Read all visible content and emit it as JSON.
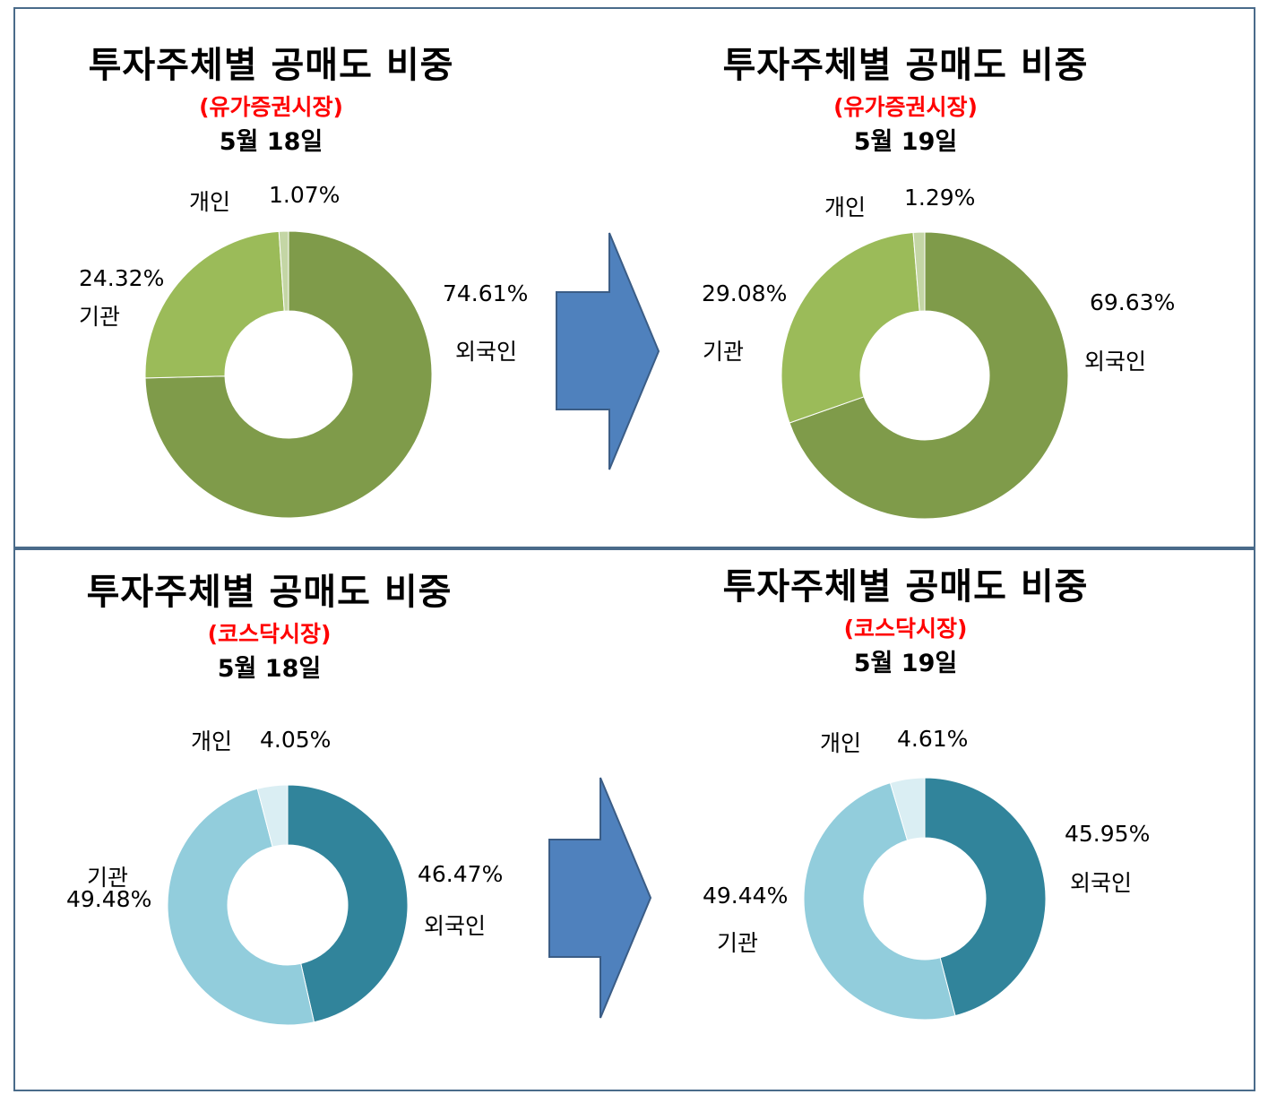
{
  "charts": [
    {
      "title": "투자주체별 공매도 비중",
      "market": "(유가증권시장)",
      "date": "5월 18일"
    },
    {
      "title": "투자주체별 공매도 비중",
      "market": "(유가증권시장)",
      "date": "5월 19일"
    },
    {
      "title": "투자주체별 공매도 비중",
      "market": "(코스닥시장)",
      "date": "5월 18일"
    },
    {
      "title": "투자주체별 공매도 비중",
      "market": "(코스닥시장)",
      "date": "5월 19일"
    }
  ],
  "chart_data": [
    {
      "type": "pie",
      "title": "투자주체별 공매도 비중",
      "subtitle": "(유가증권시장) 5월 18일",
      "categories": [
        "외국인",
        "기관",
        "개인"
      ],
      "values": [
        74.61,
        24.32,
        1.07
      ],
      "value_labels": [
        "74.61%",
        "24.32%",
        "1.07%"
      ],
      "colors": [
        "#7f9b4a",
        "#9bbb59",
        "#c4d6a5"
      ]
    },
    {
      "type": "pie",
      "title": "투자주체별 공매도 비중",
      "subtitle": "(유가증권시장) 5월 19일",
      "categories": [
        "외국인",
        "기관",
        "개인"
      ],
      "values": [
        69.63,
        29.08,
        1.29
      ],
      "value_labels": [
        "69.63%",
        "29.08%",
        "1.29%"
      ],
      "colors": [
        "#7f9b4a",
        "#9bbb59",
        "#c4d6a5"
      ]
    },
    {
      "type": "pie",
      "title": "투자주체별 공매도 비중",
      "subtitle": "(코스닥시장) 5월 18일",
      "categories": [
        "외국인",
        "기관",
        "개인"
      ],
      "values": [
        46.47,
        49.48,
        4.05
      ],
      "value_labels": [
        "46.47%",
        "49.48%",
        "4.05%"
      ],
      "colors": [
        "#31849b",
        "#92cddc",
        "#daeef3"
      ]
    },
    {
      "type": "pie",
      "title": "투자주체별 공매도 비중",
      "subtitle": "(코스닥시장) 5월 19일",
      "categories": [
        "외국인",
        "기관",
        "개인"
      ],
      "values": [
        45.95,
        49.44,
        4.61
      ],
      "value_labels": [
        "45.95%",
        "49.44%",
        "4.61%"
      ],
      "colors": [
        "#31849b",
        "#92cddc",
        "#daeef3"
      ]
    }
  ],
  "arrow_color": "#4f81bd",
  "frame_color": "#4a6b8a"
}
